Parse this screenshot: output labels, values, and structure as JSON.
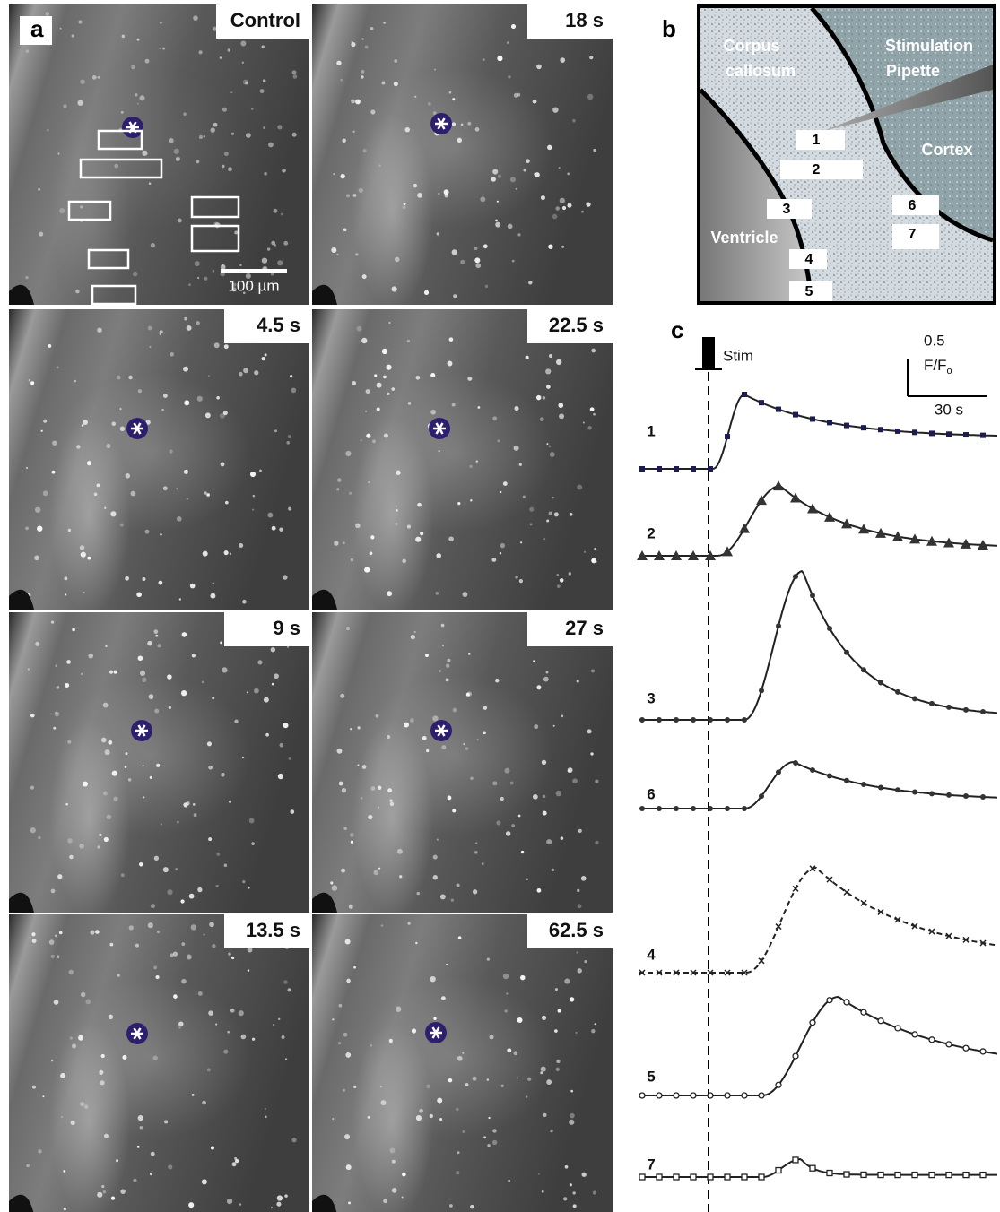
{
  "panel_labels": {
    "a": "a",
    "b": "b",
    "c": "c"
  },
  "frames": [
    "Control",
    "18 s",
    "4.5 s",
    "22.5 s",
    "9 s",
    "27 s",
    "13.5 s",
    "62.5 s"
  ],
  "scale_bar": "100 µm",
  "schematic": {
    "corpus": [
      "Corpus",
      "callosum"
    ],
    "pipette": [
      "Stimulation",
      "Pipette"
    ],
    "cortex": "Cortex",
    "ventricle": "Ventricle",
    "rois": [
      "1",
      "2",
      "3",
      "4",
      "5",
      "6",
      "7"
    ]
  },
  "traces": {
    "stim": "Stim",
    "scale_y": "0.5",
    "scale_unit": "F/F",
    "scale_unit_sub": "o",
    "scale_x": "30 s",
    "labels": [
      "1",
      "2",
      "3",
      "6",
      "4",
      "5",
      "7"
    ]
  }
}
